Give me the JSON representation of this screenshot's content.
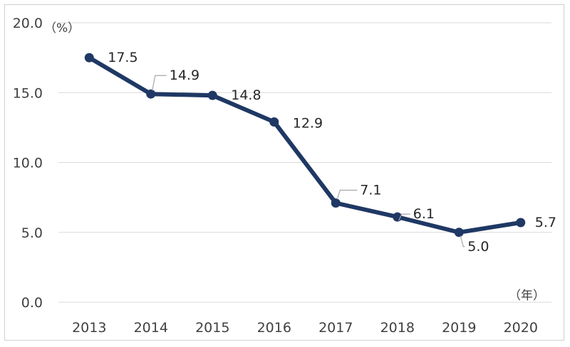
{
  "chart_data": {
    "type": "line",
    "categories": [
      "2013",
      "2014",
      "2015",
      "2016",
      "2017",
      "2018",
      "2019",
      "2020"
    ],
    "series": [
      {
        "values": [
          17.5,
          14.9,
          14.8,
          12.9,
          7.1,
          6.1,
          5.0,
          5.7
        ]
      }
    ],
    "data_labels": [
      "17.5",
      "14.9",
      "14.8",
      "12.9",
      "7.1",
      "6.1",
      "5.0",
      "5.7"
    ],
    "ylim": [
      0,
      20
    ],
    "y_ticks": [
      "0.0",
      "5.0",
      "10.0",
      "15.0",
      "20.0"
    ],
    "y_unit": "（%）",
    "x_unit": "（年）",
    "grid": true,
    "line_color": "#1f3864",
    "grid_color": "#d9d9d9"
  }
}
